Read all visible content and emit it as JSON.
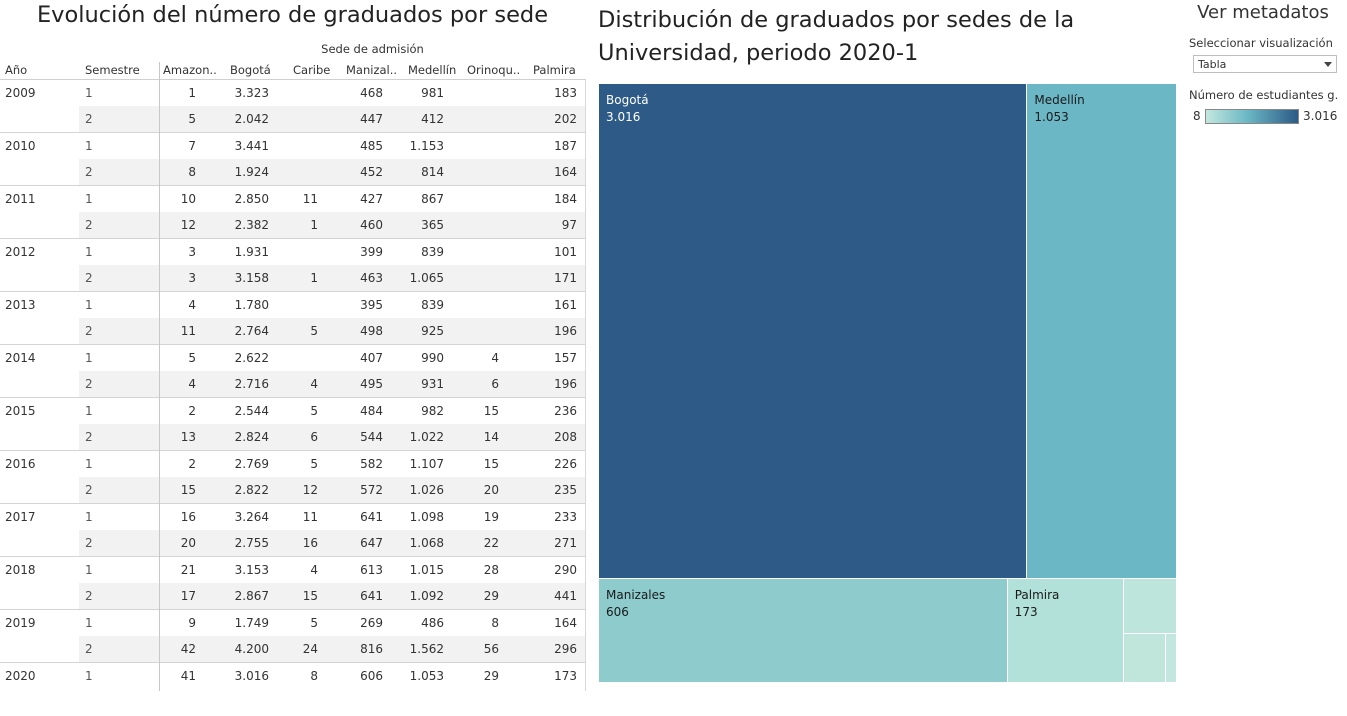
{
  "left_panel": {
    "title": "Evolución del número de graduados por sede",
    "group_header": "Sede de admisión",
    "columns": [
      "Año",
      "Semestre",
      "Amazon..",
      "Bogotá",
      "Caribe",
      "Manizal..",
      "Medellín",
      "Orinoqu..",
      "Palmira"
    ],
    "years": [
      {
        "year": "2009",
        "rows": [
          [
            "1",
            "1",
            "3.323",
            "",
            "468",
            "981",
            "",
            "183"
          ],
          [
            "2",
            "5",
            "2.042",
            "",
            "447",
            "412",
            "",
            "202"
          ]
        ]
      },
      {
        "year": "2010",
        "rows": [
          [
            "1",
            "7",
            "3.441",
            "",
            "485",
            "1.153",
            "",
            "187"
          ],
          [
            "2",
            "8",
            "1.924",
            "",
            "452",
            "814",
            "",
            "164"
          ]
        ]
      },
      {
        "year": "2011",
        "rows": [
          [
            "1",
            "10",
            "2.850",
            "11",
            "427",
            "867",
            "",
            "184"
          ],
          [
            "2",
            "12",
            "2.382",
            "1",
            "460",
            "365",
            "",
            "97"
          ]
        ]
      },
      {
        "year": "2012",
        "rows": [
          [
            "1",
            "3",
            "1.931",
            "",
            "399",
            "839",
            "",
            "101"
          ],
          [
            "2",
            "3",
            "3.158",
            "1",
            "463",
            "1.065",
            "",
            "171"
          ]
        ]
      },
      {
        "year": "2013",
        "rows": [
          [
            "1",
            "4",
            "1.780",
            "",
            "395",
            "839",
            "",
            "161"
          ],
          [
            "2",
            "11",
            "2.764",
            "5",
            "498",
            "925",
            "",
            "196"
          ]
        ]
      },
      {
        "year": "2014",
        "rows": [
          [
            "1",
            "5",
            "2.622",
            "",
            "407",
            "990",
            "4",
            "157"
          ],
          [
            "2",
            "4",
            "2.716",
            "4",
            "495",
            "931",
            "6",
            "196"
          ]
        ]
      },
      {
        "year": "2015",
        "rows": [
          [
            "1",
            "2",
            "2.544",
            "5",
            "484",
            "982",
            "15",
            "236"
          ],
          [
            "2",
            "13",
            "2.824",
            "6",
            "544",
            "1.022",
            "14",
            "208"
          ]
        ]
      },
      {
        "year": "2016",
        "rows": [
          [
            "1",
            "2",
            "2.769",
            "5",
            "582",
            "1.107",
            "15",
            "226"
          ],
          [
            "2",
            "15",
            "2.822",
            "12",
            "572",
            "1.026",
            "20",
            "235"
          ]
        ]
      },
      {
        "year": "2017",
        "rows": [
          [
            "1",
            "16",
            "3.264",
            "11",
            "641",
            "1.098",
            "19",
            "233"
          ],
          [
            "2",
            "20",
            "2.755",
            "16",
            "647",
            "1.068",
            "22",
            "271"
          ]
        ]
      },
      {
        "year": "2018",
        "rows": [
          [
            "1",
            "21",
            "3.153",
            "4",
            "613",
            "1.015",
            "28",
            "290"
          ],
          [
            "2",
            "17",
            "2.867",
            "15",
            "641",
            "1.092",
            "29",
            "441"
          ]
        ]
      },
      {
        "year": "2019",
        "rows": [
          [
            "1",
            "9",
            "1.749",
            "5",
            "269",
            "486",
            "8",
            "164"
          ],
          [
            "2",
            "42",
            "4.200",
            "24",
            "816",
            "1.562",
            "56",
            "296"
          ]
        ]
      },
      {
        "year": "2020",
        "rows": [
          [
            "1",
            "41",
            "3.016",
            "8",
            "606",
            "1.053",
            "29",
            "173"
          ]
        ]
      }
    ]
  },
  "right_panel": {
    "title": "Distribución de graduados por sedes de la Universidad, periodo 2020-1"
  },
  "chart_data": {
    "type": "treemap",
    "title": "Distribución de graduados por sedes de la Universidad, periodo 2020-1",
    "items": [
      {
        "name": "Bogotá",
        "value": 3016,
        "label": "Bogotá",
        "value_label": "3.016",
        "color": "#2d5a86",
        "text_color": "#ffffff"
      },
      {
        "name": "Medellín",
        "value": 1053,
        "label": "Medellín",
        "value_label": "1.053",
        "color": "#6bb7c5",
        "text_color": "#1a1a1a"
      },
      {
        "name": "Manizales",
        "value": 606,
        "label": "Manizales",
        "value_label": "606",
        "color": "#8ecbcd",
        "text_color": "#1a1a1a"
      },
      {
        "name": "Palmira",
        "value": 173,
        "label": "Palmira",
        "value_label": "173",
        "color": "#b1e1d8",
        "text_color": "#1a1a1a"
      },
      {
        "name": "Amazonía",
        "value": 41,
        "color": "#bde5db"
      },
      {
        "name": "Orinoquía",
        "value": 29,
        "color": "#c0e6dc"
      },
      {
        "name": "Caribe",
        "value": 8,
        "color": "#c3e7de"
      }
    ]
  },
  "sidebar": {
    "metadata_title": "Ver metadatos",
    "viz_label": "Seleccionar visualización",
    "viz_value": "Tabla",
    "legend_title": "Número de estudiantes g..",
    "legend_min": "8",
    "legend_max": "3.016",
    "legend_colors": [
      "#c3e7de",
      "#6bb7c5",
      "#2d5a86"
    ]
  }
}
